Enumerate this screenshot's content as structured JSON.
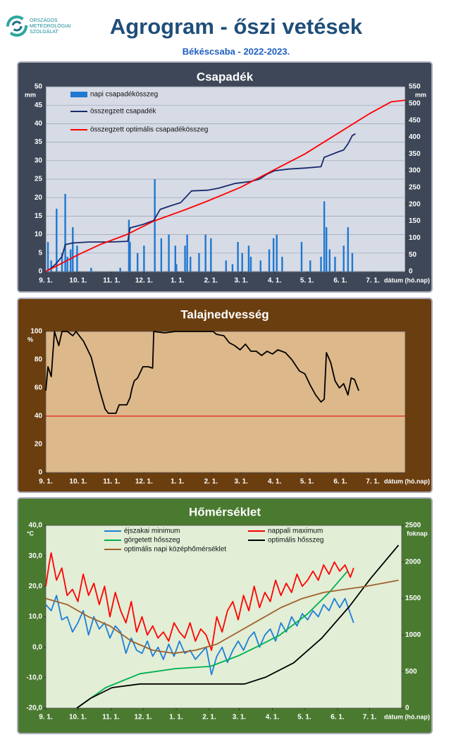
{
  "header": {
    "org": [
      "ORSZÁGOS",
      "METEOROLÓGIAI",
      "SZOLGÁLAT"
    ],
    "title": "Agrogram - őszi vetések",
    "subtitle": "Békéscsaba - 2022-2023."
  },
  "chart_data": [
    {
      "type": "combo",
      "title": "Csapadék",
      "xlabel": "dátum (hó.nap)",
      "ylabel": "mm",
      "y2label": "mm",
      "grid": true,
      "xlim": [
        0,
        333
      ],
      "xticks": [
        {
          "value": 0,
          "label": "9. 1."
        },
        {
          "value": 30,
          "label": "10. 1."
        },
        {
          "value": 61,
          "label": "11. 1."
        },
        {
          "value": 91,
          "label": "12. 1."
        },
        {
          "value": 122,
          "label": "1. 1."
        },
        {
          "value": 153,
          "label": "2. 1."
        },
        {
          "value": 181,
          "label": "3. 1."
        },
        {
          "value": 212,
          "label": "4. 1."
        },
        {
          "value": 242,
          "label": "5. 1."
        },
        {
          "value": 273,
          "label": "6. 1."
        },
        {
          "value": 303,
          "label": "7. 1."
        }
      ],
      "ylim": [
        0,
        50
      ],
      "yticks": [
        0,
        5,
        10,
        15,
        20,
        25,
        30,
        35,
        40,
        45,
        50
      ],
      "y2lim": [
        0,
        550
      ],
      "y2ticks": [
        0,
        50,
        100,
        150,
        200,
        250,
        300,
        350,
        400,
        450,
        500,
        550
      ],
      "series": [
        {
          "name": "napi csapadékösszeg",
          "kind": "bar",
          "color": "#1f78d1",
          "x": [
            2,
            5,
            10,
            15,
            18,
            20,
            23,
            25,
            29,
            42,
            69,
            77,
            78,
            85,
            91,
            101,
            107,
            114,
            120,
            121,
            129,
            131,
            134,
            142,
            148,
            153,
            167,
            173,
            178,
            182,
            188,
            190,
            199,
            207,
            211,
            214,
            219,
            237,
            245,
            255,
            258,
            260,
            263,
            268,
            276,
            280,
            284
          ],
          "values": [
            8,
            3,
            17,
            5,
            21,
            4,
            6,
            12,
            7,
            1,
            1,
            14,
            8,
            5,
            7,
            25,
            9,
            10,
            7,
            2,
            7,
            10,
            4,
            5,
            10,
            9,
            3,
            2,
            8,
            5,
            7,
            4,
            3,
            6,
            9,
            10,
            4,
            8,
            3,
            4,
            19,
            12,
            6,
            4,
            7,
            12,
            5
          ]
        },
        {
          "name": "összegzett csapadék",
          "kind": "line",
          "axis": "y2",
          "color": "#1a2a6c",
          "x": [
            0,
            5,
            10,
            15,
            18,
            25,
            40,
            60,
            76,
            78,
            90,
            100,
            106,
            115,
            125,
            135,
            150,
            160,
            175,
            190,
            198,
            205,
            212,
            225,
            240,
            255,
            258,
            262,
            270,
            276,
            280,
            284,
            287
          ],
          "values": [
            0,
            10,
            25,
            45,
            80,
            85,
            88,
            88,
            90,
            130,
            140,
            152,
            185,
            195,
            205,
            240,
            242,
            248,
            262,
            268,
            275,
            290,
            300,
            305,
            308,
            312,
            340,
            345,
            355,
            362,
            380,
            405,
            410
          ]
        },
        {
          "name": "összegzett optimális  csapadékösszeg",
          "kind": "line",
          "axis": "y2",
          "color": "#ff0000",
          "x": [
            0,
            15,
            30,
            50,
            75,
            100,
            130,
            150,
            180,
            210,
            240,
            270,
            300,
            320,
            333
          ],
          "values": [
            0,
            25,
            50,
            80,
            110,
            150,
            185,
            210,
            250,
            300,
            350,
            410,
            470,
            505,
            510
          ]
        }
      ]
    },
    {
      "type": "line",
      "title": "Talajnedvesség",
      "xlabel": "dátum (hó.nap)",
      "ylabel": "%",
      "grid": false,
      "hline": 40,
      "hline_color": "#e00000",
      "xlim": [
        0,
        333
      ],
      "xticks": [
        {
          "value": 0,
          "label": "9. 1."
        },
        {
          "value": 30,
          "label": "10. 1."
        },
        {
          "value": 61,
          "label": "11. 1."
        },
        {
          "value": 91,
          "label": "12. 1."
        },
        {
          "value": 122,
          "label": "1. 1."
        },
        {
          "value": 153,
          "label": "2. 1."
        },
        {
          "value": 181,
          "label": "3. 1."
        },
        {
          "value": 212,
          "label": "4. 1."
        },
        {
          "value": 242,
          "label": "5. 1."
        },
        {
          "value": 273,
          "label": "6. 1."
        },
        {
          "value": 303,
          "label": "7. 1."
        }
      ],
      "ylim": [
        0,
        100
      ],
      "yticks": [
        0,
        20,
        40,
        60,
        80,
        100
      ],
      "series": [
        {
          "kind": "line",
          "color": "#000000",
          "x": [
            0,
            2,
            5,
            8,
            12,
            15,
            20,
            25,
            28,
            35,
            42,
            50,
            55,
            58,
            65,
            68,
            75,
            78,
            80,
            82,
            85,
            90,
            95,
            99,
            100,
            110,
            120,
            140,
            155,
            158,
            165,
            170,
            175,
            180,
            185,
            190,
            195,
            200,
            205,
            210,
            215,
            222,
            228,
            235,
            240,
            245,
            250,
            255,
            258,
            260,
            264,
            268,
            272,
            276,
            280,
            283,
            286,
            290
          ],
          "values": [
            58,
            75,
            68,
            100,
            90,
            100,
            100,
            97,
            100,
            93,
            82,
            58,
            45,
            42,
            42,
            48,
            48,
            53,
            60,
            65,
            67,
            75,
            75,
            74,
            100,
            99,
            100,
            100,
            100,
            98,
            97,
            92,
            90,
            87,
            91,
            86,
            86,
            83,
            86,
            84,
            87,
            85,
            80,
            72,
            70,
            62,
            55,
            50,
            52,
            85,
            78,
            65,
            60,
            63,
            55,
            67,
            66,
            58
          ]
        }
      ]
    },
    {
      "type": "combo",
      "title": "Hőmérséklet",
      "xlabel": "dátum (hó.nap)",
      "ylabel": "°C",
      "y2label": "foknap",
      "grid": false,
      "xlim": [
        0,
        333
      ],
      "xticks": [
        {
          "value": 0,
          "label": "9. 1."
        },
        {
          "value": 30,
          "label": "10. 1."
        },
        {
          "value": 61,
          "label": "11. 1."
        },
        {
          "value": 91,
          "label": "12. 1."
        },
        {
          "value": 122,
          "label": "1. 1."
        },
        {
          "value": 153,
          "label": "2. 1."
        },
        {
          "value": 181,
          "label": "3. 1."
        },
        {
          "value": 212,
          "label": "4. 1."
        },
        {
          "value": 242,
          "label": "5. 1."
        },
        {
          "value": 273,
          "label": "6. 1."
        },
        {
          "value": 303,
          "label": "7. 1."
        }
      ],
      "ylim": [
        -20,
        40
      ],
      "yticks": [
        {
          "value": -20,
          "label": "-20,0"
        },
        {
          "value": -10,
          "label": "-10,0"
        },
        {
          "value": 0,
          "label": "0,0"
        },
        {
          "value": 10,
          "label": "10,0"
        },
        {
          "value": 20,
          "label": "20,0"
        },
        {
          "value": 30,
          "label": "30,0"
        },
        {
          "value": 40,
          "label": "40,0"
        }
      ],
      "y2lim": [
        0,
        2500
      ],
      "y2ticks": [
        0,
        500,
        1000,
        1500,
        2000,
        2500
      ],
      "series": [
        {
          "name": "éjszakai minimum",
          "kind": "line",
          "color": "#1e7fd8",
          "x": [
            0,
            5,
            10,
            15,
            20,
            25,
            30,
            35,
            40,
            45,
            50,
            55,
            60,
            65,
            70,
            75,
            80,
            85,
            90,
            95,
            100,
            105,
            110,
            115,
            120,
            125,
            130,
            135,
            140,
            145,
            150,
            155,
            160,
            165,
            170,
            175,
            180,
            185,
            190,
            195,
            200,
            205,
            210,
            215,
            220,
            225,
            230,
            235,
            240,
            245,
            250,
            255,
            260,
            265,
            270,
            275,
            280,
            285,
            288
          ],
          "values": [
            14,
            12,
            17,
            9,
            10,
            5,
            8,
            12,
            4,
            10,
            6,
            8,
            3,
            7,
            5,
            -2,
            3,
            -1,
            -2,
            2,
            -3,
            0,
            -4,
            1,
            -3,
            2,
            -2,
            -1,
            -4,
            -2,
            0,
            -9,
            -3,
            0,
            -5,
            -1,
            2,
            -1,
            3,
            5,
            0,
            4,
            6,
            2,
            8,
            5,
            10,
            7,
            11,
            9,
            12,
            10,
            14,
            12,
            16,
            13,
            16,
            11,
            8
          ]
        },
        {
          "name": "nappali maximum",
          "kind": "line",
          "color": "#ff0000",
          "x": [
            0,
            3,
            5,
            10,
            15,
            20,
            25,
            30,
            35,
            40,
            45,
            50,
            55,
            60,
            65,
            70,
            75,
            80,
            85,
            90,
            95,
            100,
            105,
            110,
            115,
            120,
            125,
            130,
            135,
            140,
            145,
            150,
            155,
            160,
            165,
            170,
            175,
            180,
            185,
            190,
            195,
            200,
            205,
            210,
            215,
            220,
            225,
            230,
            235,
            240,
            245,
            250,
            255,
            260,
            265,
            270,
            275,
            280,
            285,
            288
          ],
          "values": [
            20,
            27,
            31,
            22,
            26,
            17,
            19,
            15,
            24,
            17,
            21,
            14,
            20,
            10,
            18,
            12,
            8,
            15,
            5,
            10,
            4,
            7,
            3,
            5,
            2,
            8,
            5,
            3,
            8,
            2,
            6,
            4,
            -1,
            10,
            5,
            12,
            15,
            9,
            17,
            12,
            20,
            13,
            18,
            15,
            22,
            17,
            21,
            18,
            24,
            20,
            22,
            25,
            22,
            27,
            24,
            28,
            25,
            27,
            23,
            26
          ]
        },
        {
          "name": "görgetett hősszeg",
          "kind": "line",
          "axis": "y2",
          "color": "#00b050",
          "x": [
            29,
            42,
            56,
            88,
            121,
            154,
            180,
            199,
            219,
            245,
            265,
            282
          ],
          "values": [
            0,
            135,
            280,
            470,
            540,
            570,
            715,
            850,
            1000,
            1290,
            1580,
            1870
          ]
        },
        {
          "name": "optimális hősszeg",
          "kind": "line",
          "axis": "y2",
          "color": "#000000",
          "x": [
            29,
            42,
            62,
            88,
            186,
            206,
            232,
            258,
            284,
            304,
            330
          ],
          "values": [
            0,
            135,
            280,
            330,
            330,
            425,
            620,
            955,
            1390,
            1775,
            2230
          ]
        },
        {
          "name": "optimális napi középhőmérséklet",
          "kind": "line",
          "color": "#a0622d",
          "x": [
            0,
            20,
            40,
            60,
            80,
            100,
            120,
            140,
            160,
            180,
            200,
            220,
            240,
            260,
            280,
            300,
            330
          ],
          "values": [
            16,
            14,
            10,
            7,
            2,
            -1,
            -2,
            -1,
            1,
            5,
            9,
            13,
            16,
            18,
            19,
            20,
            22
          ]
        }
      ]
    }
  ]
}
